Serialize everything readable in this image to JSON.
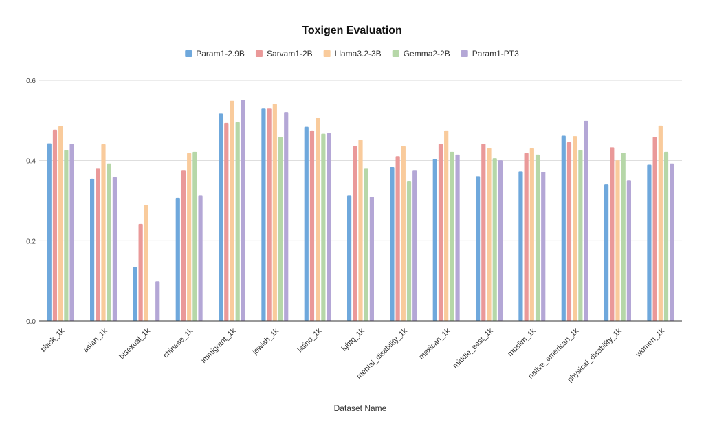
{
  "chart_data": {
    "type": "bar",
    "title": "Toxigen Evaluation",
    "xlabel": "Dataset Name",
    "ylabel": "",
    "ylim": [
      0,
      0.6
    ],
    "yticks": [
      "0.0",
      "0.2",
      "0.4",
      "0.6"
    ],
    "grid": true,
    "legend_position": "top",
    "categories": [
      "black_1k",
      "asian_1k",
      "bisexual_1k",
      "chinese_1k",
      "immigrant_1k",
      "jewish_1k",
      "latino_1k",
      "lgbtq_1k",
      "mental_disability_1k",
      "mexican_1k",
      "middle_east_1k",
      "muslim_1k",
      "native_american_1k",
      "physical_disability_1k",
      "women_1k"
    ],
    "series": [
      {
        "name": "Param1-2.9B",
        "color": "#6fa8dc",
        "values": [
          0.443,
          0.355,
          0.134,
          0.307,
          0.517,
          0.531,
          0.484,
          0.313,
          0.384,
          0.404,
          0.361,
          0.373,
          0.462,
          0.341,
          0.39
        ]
      },
      {
        "name": "Sarvam1-2B",
        "color": "#ea9999",
        "values": [
          0.477,
          0.38,
          0.242,
          0.375,
          0.494,
          0.531,
          0.475,
          0.437,
          0.411,
          0.442,
          0.442,
          0.419,
          0.446,
          0.433,
          0.459
        ]
      },
      {
        "name": "Llama3.2-3B",
        "color": "#f9cb9c",
        "values": [
          0.486,
          0.441,
          0.289,
          0.419,
          0.549,
          0.541,
          0.506,
          0.452,
          0.436,
          0.475,
          0.431,
          0.431,
          0.461,
          0.401,
          0.487
        ]
      },
      {
        "name": "Gemma2-2B",
        "color": "#b6d7a8",
        "values": [
          0.426,
          0.393,
          0.0,
          0.422,
          0.496,
          0.459,
          0.467,
          0.38,
          0.348,
          0.422,
          0.406,
          0.415,
          0.426,
          0.42,
          0.422
        ]
      },
      {
        "name": "Param1-PT3",
        "color": "#b4a7d6",
        "values": [
          0.442,
          0.359,
          0.099,
          0.313,
          0.551,
          0.521,
          0.468,
          0.31,
          0.375,
          0.415,
          0.401,
          0.372,
          0.499,
          0.351,
          0.393
        ]
      }
    ]
  }
}
